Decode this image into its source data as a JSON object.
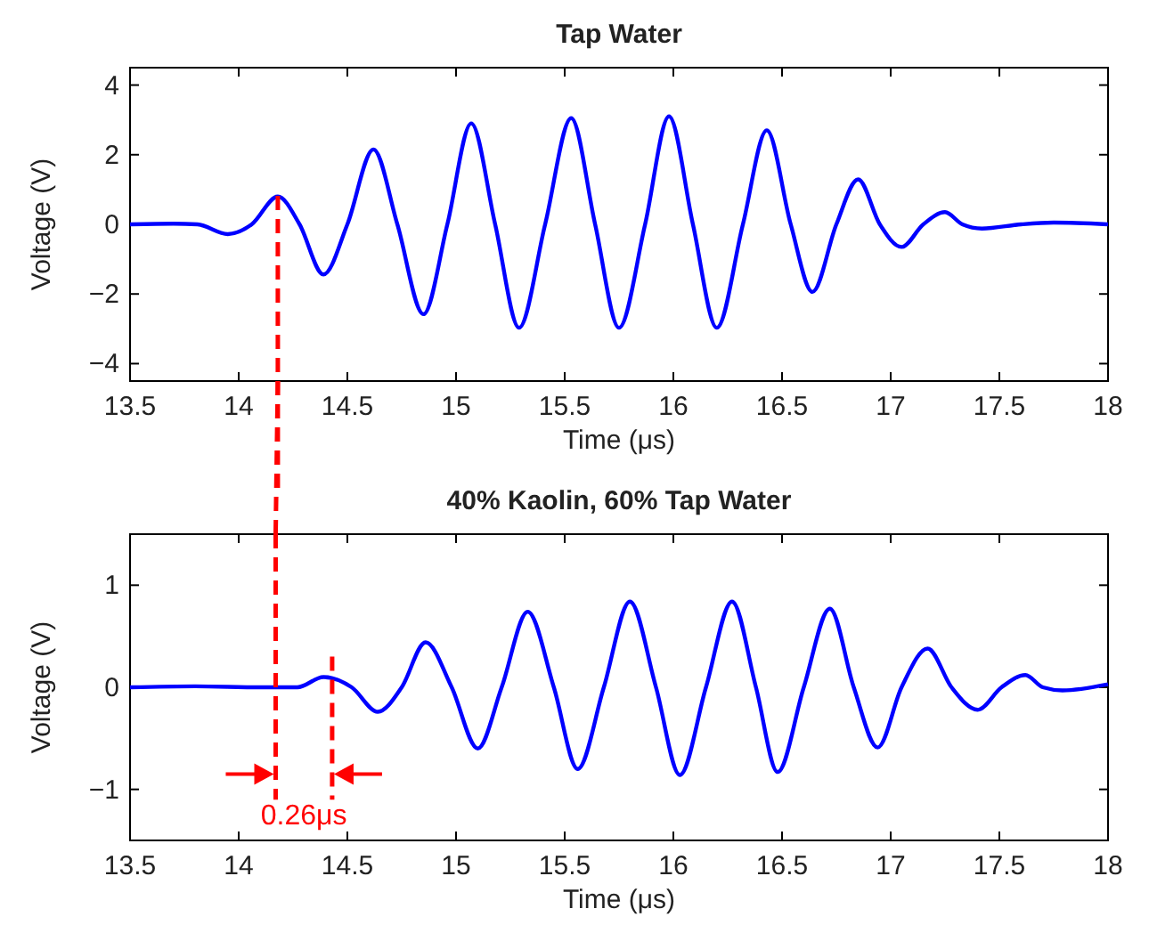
{
  "chart_data": [
    {
      "type": "line",
      "title": "Tap Water",
      "xlabel": "Time (μs)",
      "ylabel": "Voltage (V)",
      "xlim": [
        13.5,
        18
      ],
      "xticks": [
        13.5,
        14,
        14.5,
        15,
        15.5,
        16,
        16.5,
        17,
        17.5,
        18
      ],
      "ylim": [
        -4.5,
        4.5
      ],
      "yticks": [
        -4,
        -2,
        0,
        2,
        4
      ],
      "grid": false,
      "marker": "none",
      "line_style": "solid",
      "series": [
        {
          "color": "#0000ff",
          "x": [
            13.5,
            13.7,
            13.81,
            13.95,
            14.06,
            14.18,
            14.28,
            14.39,
            14.5,
            14.62,
            14.73,
            14.85,
            14.96,
            15.07,
            15.18,
            15.29,
            15.41,
            15.53,
            15.64,
            15.75,
            15.87,
            15.98,
            16.09,
            16.2,
            16.32,
            16.43,
            16.54,
            16.64,
            16.75,
            16.85,
            16.95,
            17.05,
            17.15,
            17.25,
            17.33,
            17.42,
            17.6,
            17.75,
            18
          ],
          "values": [
            0,
            0.02,
            0,
            -0.28,
            0,
            0.8,
            0,
            -1.44,
            0,
            2.15,
            0,
            -2.58,
            0,
            2.9,
            0,
            -2.97,
            0,
            3.05,
            0,
            -2.97,
            0,
            3.1,
            0,
            -2.97,
            0,
            2.7,
            0,
            -1.94,
            0,
            1.29,
            0,
            -0.65,
            0,
            0.35,
            0,
            -0.12,
            0,
            0.05,
            0
          ]
        }
      ],
      "ref_lines": [
        {
          "axis": "x",
          "value": 14.18,
          "color": "#ff0000",
          "line_style": "dashed"
        }
      ]
    },
    {
      "type": "line",
      "title": "40% Kaolin, 60% Tap Water",
      "xlabel": "Time (μs)",
      "ylabel": "Voltage (V)",
      "xlim": [
        13.5,
        18
      ],
      "xticks": [
        13.5,
        14,
        14.5,
        15,
        15.5,
        16,
        16.5,
        17,
        17.5,
        18
      ],
      "ylim": [
        -1.5,
        1.5
      ],
      "yticks": [
        -1,
        0,
        1
      ],
      "grid": false,
      "marker": "none",
      "line_style": "solid",
      "series": [
        {
          "color": "#0000ff",
          "x": [
            13.5,
            13.8,
            14.1,
            14.27,
            14.39,
            14.52,
            14.64,
            14.75,
            14.86,
            14.98,
            15.1,
            15.21,
            15.33,
            15.45,
            15.56,
            15.68,
            15.8,
            15.92,
            16.03,
            16.15,
            16.27,
            16.38,
            16.48,
            16.6,
            16.72,
            16.83,
            16.94,
            17.05,
            17.17,
            17.28,
            17.4,
            17.51,
            17.62,
            17.7,
            17.79,
            18
          ],
          "values": [
            0,
            0.01,
            0,
            0,
            0.1,
            0,
            -0.24,
            0,
            0.44,
            0,
            -0.6,
            0,
            0.74,
            0,
            -0.8,
            0,
            0.84,
            0,
            -0.86,
            0,
            0.84,
            0,
            -0.83,
            0,
            0.77,
            0,
            -0.59,
            0,
            0.38,
            0,
            -0.22,
            0,
            0.12,
            0,
            -0.03,
            0.03
          ]
        }
      ],
      "ref_lines": [
        {
          "axis": "x",
          "value": 14.17,
          "color": "#ff0000",
          "line_style": "dashed"
        },
        {
          "axis": "x",
          "value": 14.43,
          "color": "#ff0000",
          "line_style": "dashed"
        }
      ],
      "annotations": [
        "0.26μs"
      ]
    }
  ]
}
